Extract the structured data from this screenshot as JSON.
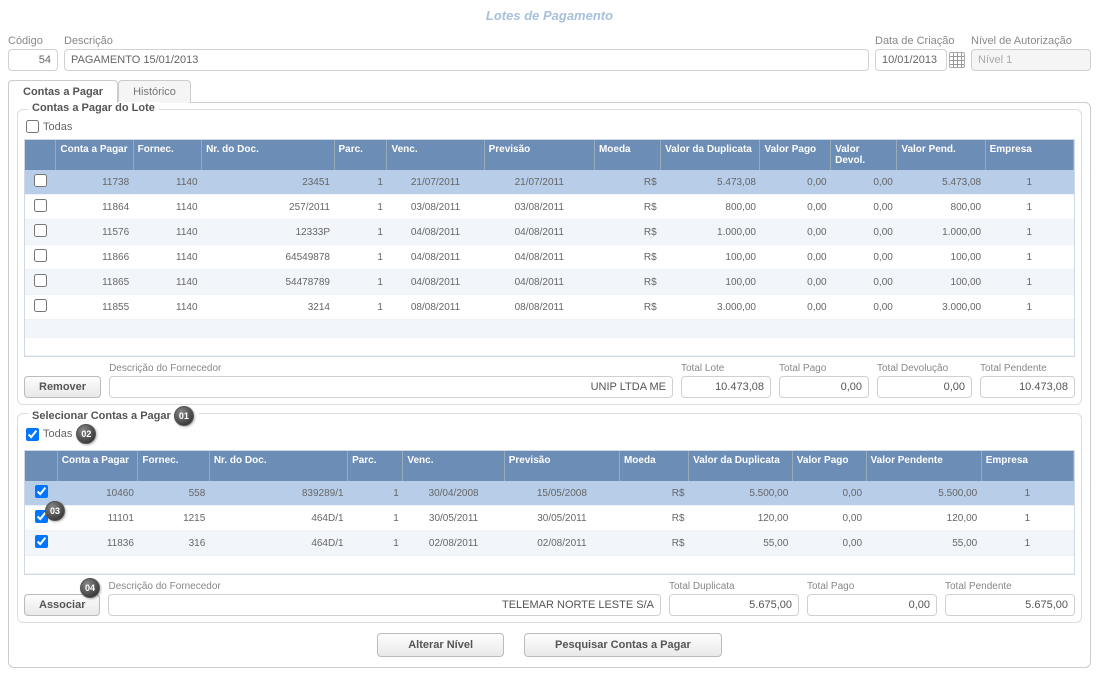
{
  "page_title": "Lotes de Pagamento",
  "top_form": {
    "codigo": {
      "label": "Código",
      "value": "54"
    },
    "descricao": {
      "label": "Descrição",
      "value": "PAGAMENTO 15/01/2013"
    },
    "data_criacao": {
      "label": "Data de Criação",
      "value": "10/01/2013"
    },
    "nivel_autorizacao": {
      "label": "Nível de Autorização",
      "value": "Nível 1"
    }
  },
  "tabs": {
    "contas": "Contas a Pagar",
    "historico": "Histórico"
  },
  "lote_section": {
    "title": "Contas a Pagar do Lote",
    "todas_label": "Todas",
    "todas_checked": false,
    "columns": [
      "",
      "Conta a Pagar",
      "Fornec.",
      "Nr. do Doc.",
      "Parc.",
      "Venc.",
      "Previsão",
      "Moeda",
      "Valor da Duplicata",
      "Valor Pago",
      "Valor Devol.",
      "Valor Pend.",
      "Empresa"
    ],
    "rows": [
      {
        "checked": false,
        "selected": true,
        "conta": "11738",
        "fornec": "1140",
        "doc": "23451",
        "parc": "1",
        "venc": "21/07/2011",
        "prev": "21/07/2011",
        "moeda": "R$",
        "dup": "5.473,08",
        "pago": "0,00",
        "devol": "0,00",
        "pend": "5.473,08",
        "emp": "1"
      },
      {
        "checked": false,
        "conta": "11864",
        "fornec": "1140",
        "doc": "257/2011",
        "parc": "1",
        "venc": "03/08/2011",
        "prev": "03/08/2011",
        "moeda": "R$",
        "dup": "800,00",
        "pago": "0,00",
        "devol": "0,00",
        "pend": "800,00",
        "emp": "1"
      },
      {
        "checked": false,
        "conta": "11576",
        "fornec": "1140",
        "doc": "12333P",
        "parc": "1",
        "venc": "04/08/2011",
        "prev": "04/08/2011",
        "moeda": "R$",
        "dup": "1.000,00",
        "pago": "0,00",
        "devol": "0,00",
        "pend": "1.000,00",
        "emp": "1"
      },
      {
        "checked": false,
        "conta": "11866",
        "fornec": "1140",
        "doc": "64549878",
        "parc": "1",
        "venc": "04/08/2011",
        "prev": "04/08/2011",
        "moeda": "R$",
        "dup": "100,00",
        "pago": "0,00",
        "devol": "0,00",
        "pend": "100,00",
        "emp": "1"
      },
      {
        "checked": false,
        "conta": "11865",
        "fornec": "1140",
        "doc": "54478789",
        "parc": "1",
        "venc": "04/08/2011",
        "prev": "04/08/2011",
        "moeda": "R$",
        "dup": "100,00",
        "pago": "0,00",
        "devol": "0,00",
        "pend": "100,00",
        "emp": "1"
      },
      {
        "checked": false,
        "conta": "11855",
        "fornec": "1140",
        "doc": "3214",
        "parc": "1",
        "venc": "08/08/2011",
        "prev": "08/08/2011",
        "moeda": "R$",
        "dup": "3.000,00",
        "pago": "0,00",
        "devol": "0,00",
        "pend": "3.000,00",
        "emp": "1"
      }
    ],
    "remover_btn": "Remover",
    "desc_fornec_label": "Descrição do Fornecedor",
    "desc_fornec_value": "UNIP LTDA ME",
    "total_lote": {
      "label": "Total Lote",
      "value": "10.473,08"
    },
    "total_pago": {
      "label": "Total Pago",
      "value": "0,00"
    },
    "total_devolucao": {
      "label": "Total Devolução",
      "value": "0,00"
    },
    "total_pendente": {
      "label": "Total Pendente",
      "value": "10.473,08"
    }
  },
  "selecionar_section": {
    "title": "Selecionar Contas a Pagar",
    "todas_label": "Todas",
    "todas_checked": true,
    "columns": [
      "",
      "Conta a Pagar",
      "Fornec.",
      "Nr. do Doc.",
      "Parc.",
      "Venc.",
      "Previsão",
      "Moeda",
      "Valor da Duplicata",
      "Valor Pago",
      "Valor Pendente",
      "Empresa"
    ],
    "rows": [
      {
        "checked": true,
        "selected": true,
        "conta": "10460",
        "fornec": "558",
        "doc": "839289/1",
        "parc": "1",
        "venc": "30/04/2008",
        "prev": "15/05/2008",
        "moeda": "R$",
        "dup": "5.500,00",
        "pago": "0,00",
        "pend": "5.500,00",
        "emp": "1"
      },
      {
        "checked": true,
        "conta": "11101",
        "fornec": "1215",
        "doc": "464D/1",
        "parc": "1",
        "venc": "30/05/2011",
        "prev": "30/05/2011",
        "moeda": "R$",
        "dup": "120,00",
        "pago": "0,00",
        "pend": "120,00",
        "emp": "1"
      },
      {
        "checked": true,
        "conta": "11836",
        "fornec": "316",
        "doc": "464D/1",
        "parc": "1",
        "venc": "02/08/2011",
        "prev": "02/08/2011",
        "moeda": "R$",
        "dup": "55,00",
        "pago": "0,00",
        "pend": "55,00",
        "emp": "1"
      }
    ],
    "associar_btn": "Associar",
    "desc_fornec_label": "Descrição do Fornecedor",
    "desc_fornec_value": "TELEMAR NORTE LESTE S/A",
    "total_duplicata": {
      "label": "Total Duplicata",
      "value": "5.675,00"
    },
    "total_pago": {
      "label": "Total Pago",
      "value": "0,00"
    },
    "total_pendente": {
      "label": "Total Pendente",
      "value": "5.675,00"
    }
  },
  "markers": {
    "m1": "01",
    "m2": "02",
    "m3": "03",
    "m4": "04"
  },
  "bottom_buttons": {
    "alterar": "Alterar Nível",
    "pesquisar": "Pesquisar Contas a Pagar"
  },
  "colors": {
    "header_bg": "#6c8db6",
    "row_selected": "#b7cde8",
    "row_odd": "#f2f6fb",
    "row_even": "#ffffff",
    "title_color": "#a7c0dd"
  }
}
